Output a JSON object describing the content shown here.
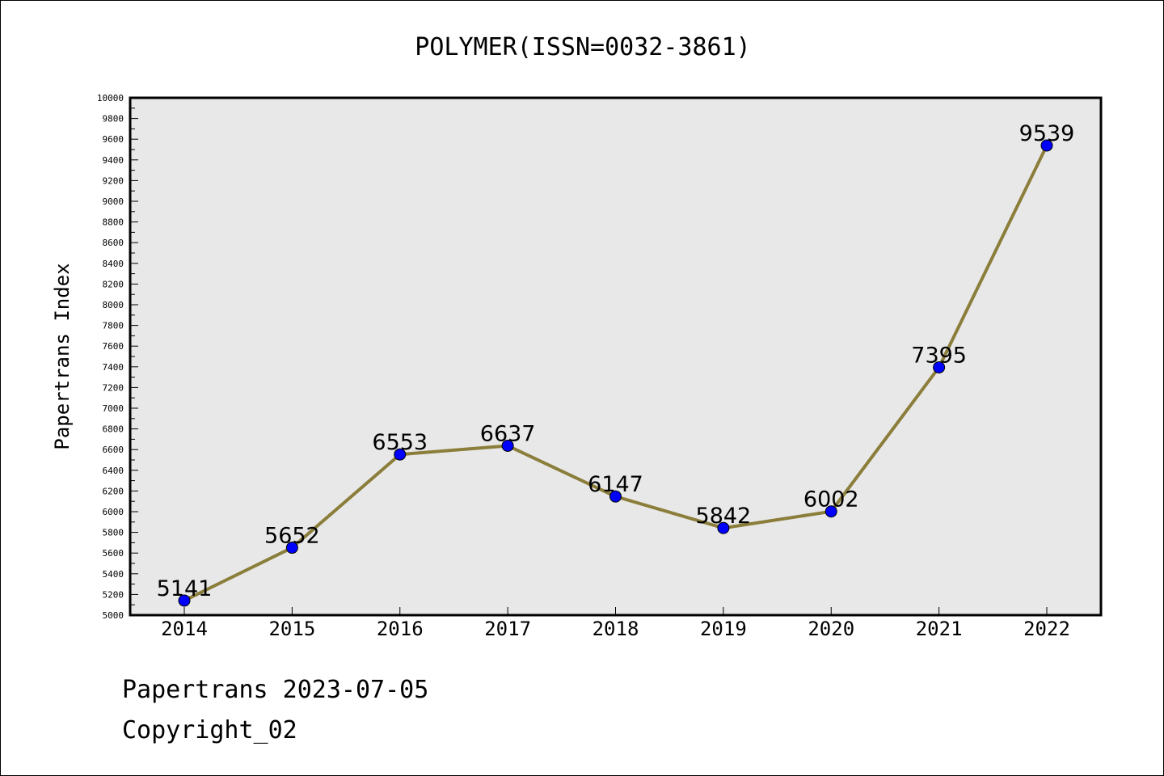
{
  "chart_data": {
    "type": "line",
    "title": "POLYMER(ISSN=0032-3861)",
    "xlabel": "",
    "ylabel": "Papertrans Index",
    "categories": [
      "2014",
      "2015",
      "2016",
      "2017",
      "2018",
      "2019",
      "2020",
      "2021",
      "2022"
    ],
    "series": [
      {
        "values": [
          5141,
          5652,
          6553,
          6637,
          6147,
          5842,
          6002,
          7395,
          9539
        ]
      }
    ],
    "ylim": [
      5000,
      10000
    ],
    "ytick_step": 200,
    "yminor_step": 100,
    "grid": false,
    "legend": "none",
    "colors": {
      "line": "#8B7D3A",
      "marker": "#0000FF",
      "plot_background": "#E8E8E8",
      "axes_frame": "#000000"
    }
  },
  "footer": {
    "line1": "Papertrans 2023-07-05",
    "line2": "Copyright_02"
  }
}
